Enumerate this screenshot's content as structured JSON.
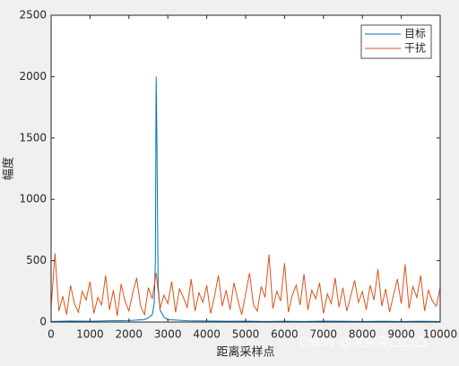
{
  "chart_data": {
    "type": "line",
    "xlabel": "距离采样点",
    "ylabel": "幅度",
    "xlim": [
      0,
      10000
    ],
    "ylim": [
      0,
      2500
    ],
    "xticks": [
      0,
      1000,
      2000,
      3000,
      4000,
      5000,
      6000,
      7000,
      8000,
      9000,
      10000
    ],
    "yticks": [
      0,
      500,
      1000,
      1500,
      2000,
      2500
    ],
    "grid": false,
    "legend": "top-right",
    "watermark": "CSDN @突突突凸凸凸",
    "series": [
      {
        "name": "目标",
        "color": "#0072BD",
        "x": [
          0,
          500,
          1000,
          1500,
          2000,
          2400,
          2500,
          2600,
          2650,
          2680,
          2700,
          2720,
          2750,
          2800,
          2900,
          3000,
          3500,
          4000,
          4500,
          5000,
          5500,
          6000,
          6500,
          7000,
          7500,
          8000,
          8500,
          9000,
          9500,
          10000
        ],
        "values": [
          5,
          8,
          6,
          10,
          12,
          20,
          35,
          60,
          150,
          500,
          2000,
          1450,
          300,
          100,
          40,
          20,
          10,
          8,
          6,
          7,
          5,
          6,
          5,
          7,
          6,
          5,
          6,
          5,
          6,
          5
        ]
      },
      {
        "name": "干扰",
        "color": "#D95319",
        "x": [
          0,
          100,
          200,
          300,
          400,
          500,
          600,
          700,
          800,
          900,
          1000,
          1100,
          1200,
          1300,
          1400,
          1500,
          1600,
          1700,
          1800,
          1900,
          2000,
          2100,
          2200,
          2300,
          2400,
          2500,
          2600,
          2700,
          2800,
          2900,
          3000,
          3100,
          3200,
          3300,
          3400,
          3500,
          3600,
          3700,
          3800,
          3900,
          4000,
          4100,
          4200,
          4300,
          4400,
          4500,
          4600,
          4700,
          4800,
          4900,
          5000,
          5100,
          5200,
          5300,
          5400,
          5500,
          5600,
          5700,
          5800,
          5900,
          6000,
          6100,
          6200,
          6300,
          6400,
          6500,
          6600,
          6700,
          6800,
          6900,
          7000,
          7100,
          7200,
          7300,
          7400,
          7500,
          7600,
          7700,
          7800,
          7900,
          8000,
          8100,
          8200,
          8300,
          8400,
          8500,
          8600,
          8700,
          8800,
          8900,
          9000,
          9100,
          9200,
          9300,
          9400,
          9500,
          9600,
          9700,
          9800,
          9900,
          10000
        ],
        "values": [
          120,
          560,
          90,
          210,
          60,
          300,
          150,
          80,
          250,
          180,
          330,
          70,
          200,
          140,
          380,
          100,
          260,
          50,
          310,
          170,
          90,
          240,
          360,
          130,
          60,
          280,
          190,
          400,
          110,
          220,
          150,
          330,
          80,
          270,
          200,
          120,
          350,
          90,
          240,
          160,
          300,
          70,
          210,
          380,
          130,
          260,
          100,
          320,
          180,
          60,
          230,
          400,
          140,
          90,
          290,
          200,
          550,
          110,
          250,
          170,
          480,
          80,
          220,
          300,
          140,
          390,
          100,
          260,
          190,
          320,
          70,
          230,
          150,
          360,
          120,
          280,
          90,
          210,
          340,
          160,
          250,
          100,
          300,
          180,
          430,
          130,
          270,
          80,
          220,
          350,
          150,
          470,
          110,
          290,
          200,
          380,
          90,
          260,
          170,
          130,
          280
        ]
      }
    ]
  }
}
